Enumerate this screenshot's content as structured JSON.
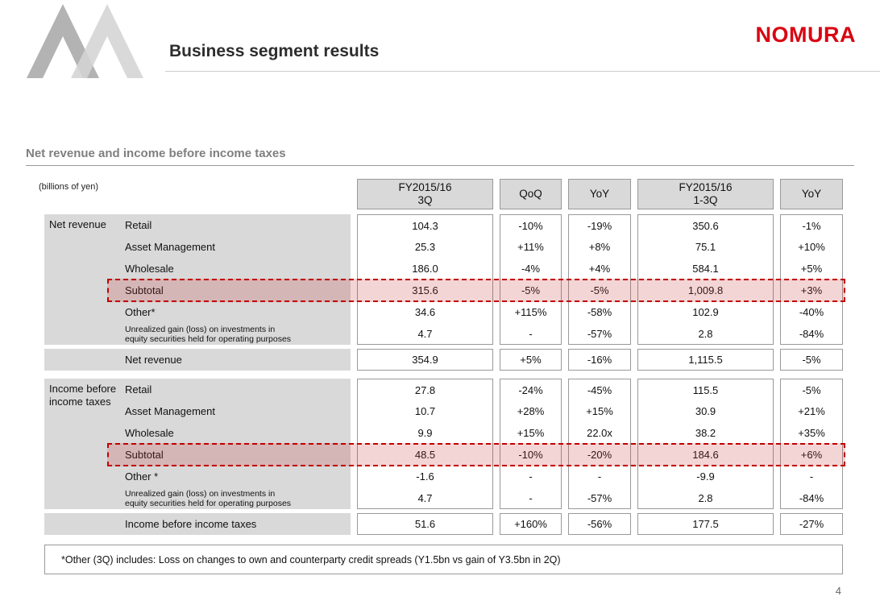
{
  "header": {
    "title": "Business segment results",
    "logo": "NOMURA"
  },
  "section": {
    "title": "Net revenue and income before income taxes",
    "units": "(billions of yen)"
  },
  "table": {
    "col_headers": [
      "FY2015/16\n3Q",
      "QoQ",
      "YoY",
      "FY2015/16\n1-3Q",
      "YoY"
    ],
    "sections": [
      {
        "group_label": "Net revenue",
        "rows": [
          {
            "label": "Retail",
            "values": [
              "104.3",
              "-10%",
              "-19%",
              "350.6",
              "-1%"
            ],
            "style": "normal"
          },
          {
            "label": "Asset Management",
            "values": [
              "25.3",
              "+11%",
              "+8%",
              "75.1",
              "+10%"
            ],
            "style": "normal"
          },
          {
            "label": "Wholesale",
            "values": [
              "186.0",
              "-4%",
              "+4%",
              "584.1",
              "+5%"
            ],
            "style": "normal"
          },
          {
            "label": "Subtotal",
            "values": [
              "315.6",
              "-5%",
              "-5%",
              "1,009.8",
              "+3%"
            ],
            "style": "subtotal"
          },
          {
            "label": "Other*",
            "values": [
              "34.6",
              "+115%",
              "-58%",
              "102.9",
              "-40%"
            ],
            "style": "normal"
          },
          {
            "label": "Unrealized gain (loss) on investments in\nequity securities held for operating purposes",
            "values": [
              "4.7",
              "-",
              "-57%",
              "2.8",
              "-84%"
            ],
            "style": "small"
          }
        ],
        "total": {
          "label": "Net revenue",
          "values": [
            "354.9",
            "+5%",
            "-16%",
            "1,115.5",
            "-5%"
          ]
        }
      },
      {
        "group_label": "Income before income taxes",
        "rows": [
          {
            "label": "Retail",
            "values": [
              "27.8",
              "-24%",
              "-45%",
              "115.5",
              "-5%"
            ],
            "style": "normal"
          },
          {
            "label": "Asset Management",
            "values": [
              "10.7",
              "+28%",
              "+15%",
              "30.9",
              "+21%"
            ],
            "style": "normal"
          },
          {
            "label": "Wholesale",
            "values": [
              "9.9",
              "+15%",
              "22.0x",
              "38.2",
              "+35%"
            ],
            "style": "normal"
          },
          {
            "label": "Subtotal",
            "values": [
              "48.5",
              "-10%",
              "-20%",
              "184.6",
              "+6%"
            ],
            "style": "subtotal"
          },
          {
            "label": "Other *",
            "values": [
              "-1.6",
              "-",
              "-",
              "-9.9",
              "-"
            ],
            "style": "normal"
          },
          {
            "label": "Unrealized gain (loss) on investments in\nequity securities held for operating purposes",
            "values": [
              "4.7",
              "-",
              "-57%",
              "2.8",
              "-84%"
            ],
            "style": "small"
          }
        ],
        "total": {
          "label": "Income before income taxes",
          "values": [
            "51.6",
            "+160%",
            "-56%",
            "177.5",
            "-27%"
          ]
        }
      }
    ]
  },
  "footnote": "*Other (3Q) includes: Loss on changes to own and counterparty credit spreads (Y1.5bn vs gain of Y3.5bn in 2Q)",
  "page_number": "4"
}
